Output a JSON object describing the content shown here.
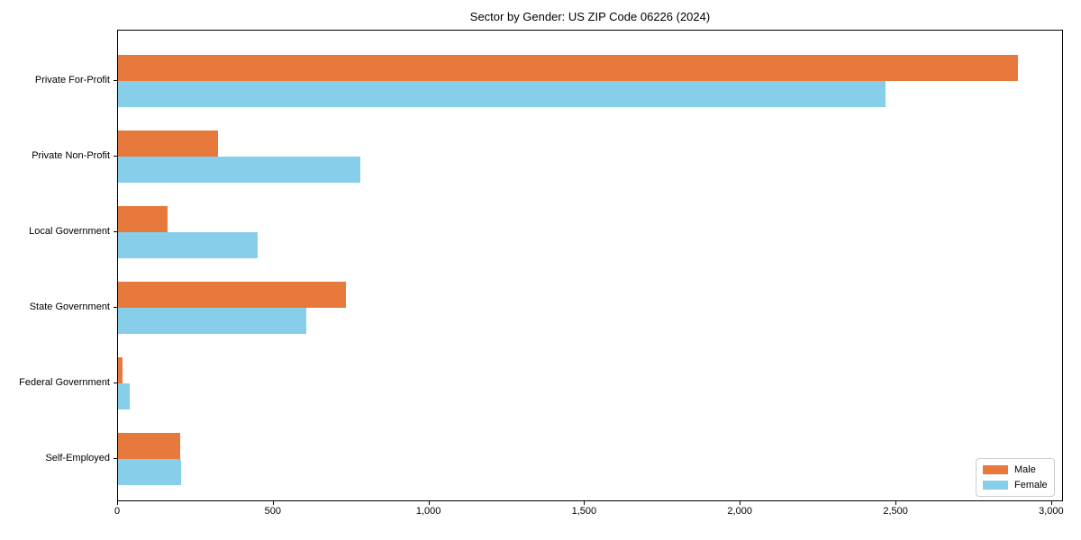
{
  "title": "Sector by Gender: US ZIP Code 06226 (2024)",
  "colors": {
    "male": "#e8793d",
    "female": "#87ceeb",
    "axis": "#000000",
    "legend_border": "#cccccc",
    "background": "#ffffff"
  },
  "legend": {
    "position": "lower right",
    "items": [
      {
        "label": "Male",
        "color": "#e8793d"
      },
      {
        "label": "Female",
        "color": "#87ceeb"
      }
    ]
  },
  "chart_data": {
    "type": "bar",
    "orientation": "horizontal",
    "title": "Sector by Gender: US ZIP Code 06226 (2024)",
    "categories": [
      "Private For-Profit",
      "Private Non-Profit",
      "Local Government",
      "State Government",
      "Federal Government",
      "Self-Employed"
    ],
    "series": [
      {
        "name": "Male",
        "color": "#e8793d",
        "values": [
          2890,
          320,
          159,
          732,
          14,
          200
        ]
      },
      {
        "name": "Female",
        "color": "#87ceeb",
        "values": [
          2465,
          778,
          449,
          605,
          38,
          203
        ]
      }
    ],
    "xlabel": "",
    "ylabel": "",
    "xlim": [
      0,
      3038
    ],
    "xticks": [
      0,
      500,
      1000,
      1500,
      2000,
      2500,
      3000
    ],
    "xtick_labels": [
      "0",
      "500",
      "1,000",
      "1,500",
      "2,000",
      "2,500",
      "3,000"
    ],
    "grid": false,
    "legend_position": "lower right"
  }
}
